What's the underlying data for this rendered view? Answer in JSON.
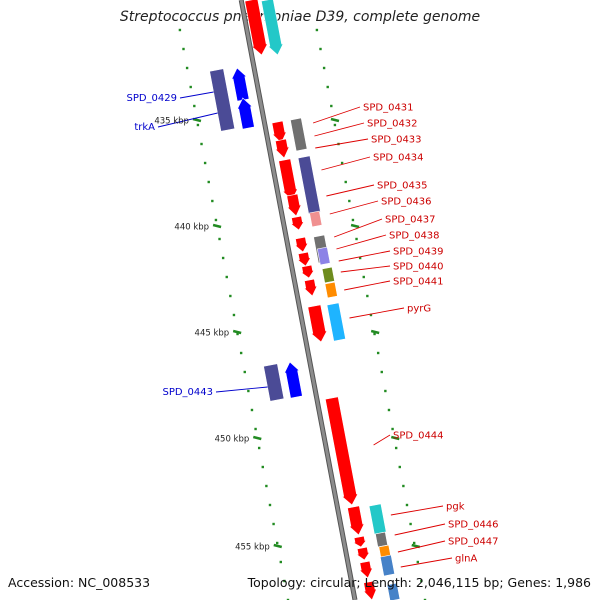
{
  "title": "Streptococcus pneumoniae D39, complete genome",
  "accession": "Accession: NC_008533",
  "summary": "Topology: circular; Length: 2,046,115 bp; Genes: 1,986",
  "colors": {
    "backbone": "#8c8c8c",
    "red": "#ff0000",
    "cyan": "#23c8c8",
    "navy": "#4b4b96",
    "blue": "#0000ff",
    "gray": "#707070",
    "pink": "#f09090",
    "lavender": "#8c82e6",
    "olive": "#6e8c1e",
    "orange": "#ff8c00",
    "skyblue": "#1eb4ff",
    "steelblue": "#4682c8",
    "tick": "#228b22",
    "label_red": "#cc0000",
    "label_blue": "#0000cc"
  },
  "kbp_labels": [
    "435 kbp",
    "440 kbp",
    "445 kbp",
    "450 kbp",
    "455 kbp"
  ],
  "gene_labels_right": [
    "SPD_0431",
    "SPD_0432",
    "SPD_0433",
    "SPD_0434",
    "SPD_0435",
    "SPD_0436",
    "SPD_0437",
    "SPD_0438",
    "SPD_0439",
    "SPD_0440",
    "SPD_0441",
    "pyrG",
    "SPD_0444",
    "pgk",
    "SPD_0446",
    "SPD_0447",
    "glnA"
  ],
  "gene_labels_left": [
    "SPD_0429",
    "trkA",
    "SPD_0443"
  ]
}
